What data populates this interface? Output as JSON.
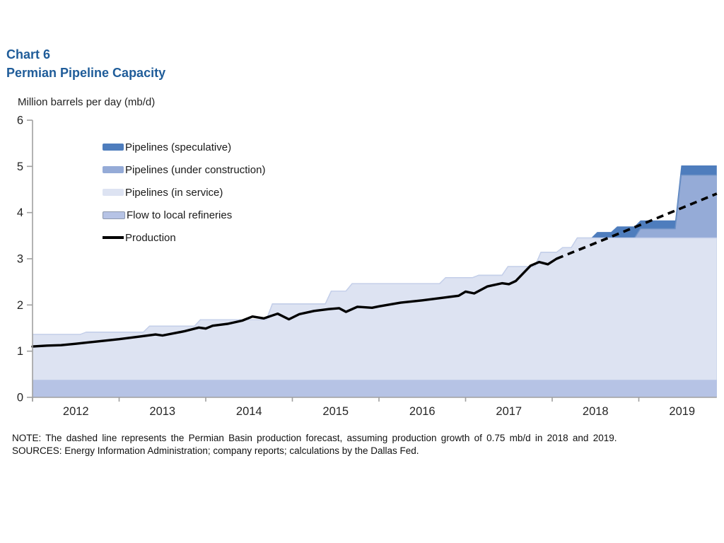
{
  "header": {
    "chart_number": "Chart 6",
    "title": "Permian Pipeline Capacity",
    "title_color": "#1f5c99"
  },
  "legend": [
    {
      "label": "Pipelines (speculative)",
      "color": "#4e7dbd",
      "type": "area"
    },
    {
      "label": "Pipelines (under construction)",
      "color": "#95abd7",
      "type": "area"
    },
    {
      "label": "Pipelines (in service)",
      "color": "#dde3f2",
      "type": "area"
    },
    {
      "label": "Flow to local refineries",
      "color": "#b6c3e5",
      "type": "area-bordered"
    },
    {
      "label": "Production",
      "color": "#000000",
      "type": "line"
    }
  ],
  "notes": {
    "note": "NOTE: The dashed line represents the Permian Basin production forecast, assuming production growth of 0.75 mb/d in 2018 and 2019.",
    "sources": "SOURCES: Energy Information  Administration; company reports; calculations by the Dallas Fed."
  },
  "chart_data": {
    "type": "area",
    "stacked": true,
    "title": "Permian Pipeline Capacity",
    "ylabel": "Million barrels per day (mb/d)",
    "xlabel": "",
    "ylim": [
      0,
      6
    ],
    "y_ticks": [
      0,
      1,
      2,
      3,
      4,
      5,
      6
    ],
    "x_tick_years": [
      2012,
      2013,
      2014,
      2015,
      2016,
      2017,
      2018,
      2019
    ],
    "x_range": [
      2012.0,
      2019.9
    ],
    "grid": false,
    "legend_position": "upper-left",
    "axis_color": "#a0a0a0",
    "tick_label_color": "#262626",
    "bands_note": "values are cumulative stack tops in mb/d; step breakpoints [year, value]",
    "bands": [
      {
        "name": "Pipelines (speculative)",
        "color": "#4e7dbd",
        "cumulative_top": [
          [
            2012.0,
            1.36
          ],
          [
            2012.55,
            1.41
          ],
          [
            2013.28,
            1.54
          ],
          [
            2013.87,
            1.68
          ],
          [
            2014.7,
            2.02
          ],
          [
            2015.38,
            2.3
          ],
          [
            2015.62,
            2.46
          ],
          [
            2016.7,
            2.59
          ],
          [
            2017.08,
            2.64
          ],
          [
            2017.42,
            2.83
          ],
          [
            2017.8,
            3.14
          ],
          [
            2018.05,
            3.24
          ],
          [
            2018.22,
            3.45
          ],
          [
            2018.45,
            3.58
          ],
          [
            2018.68,
            3.7
          ],
          [
            2018.95,
            3.83
          ],
          [
            2019.42,
            5.02
          ]
        ]
      },
      {
        "name": "Pipelines (under construction)",
        "color": "#95abd7",
        "edge_color": "#6f92c6",
        "cumulative_top": [
          [
            2012.0,
            1.36
          ],
          [
            2012.55,
            1.41
          ],
          [
            2013.28,
            1.54
          ],
          [
            2013.87,
            1.68
          ],
          [
            2014.7,
            2.02
          ],
          [
            2015.38,
            2.3
          ],
          [
            2015.62,
            2.46
          ],
          [
            2016.7,
            2.59
          ],
          [
            2017.08,
            2.64
          ],
          [
            2017.42,
            2.83
          ],
          [
            2017.8,
            3.14
          ],
          [
            2018.05,
            3.24
          ],
          [
            2018.22,
            3.45
          ],
          [
            2018.95,
            3.65
          ],
          [
            2019.42,
            4.81
          ]
        ]
      },
      {
        "name": "Pipelines (in service)",
        "color": "#dde3f2",
        "edge_color": "#c6d0ea",
        "cumulative_top": [
          [
            2012.0,
            1.36
          ],
          [
            2012.55,
            1.41
          ],
          [
            2013.28,
            1.54
          ],
          [
            2013.87,
            1.68
          ],
          [
            2014.7,
            2.02
          ],
          [
            2015.38,
            2.3
          ],
          [
            2015.62,
            2.46
          ],
          [
            2016.7,
            2.59
          ],
          [
            2017.08,
            2.64
          ],
          [
            2017.42,
            2.83
          ],
          [
            2017.8,
            3.14
          ],
          [
            2018.05,
            3.24
          ],
          [
            2018.22,
            3.45
          ]
        ]
      },
      {
        "name": "Flow to local refineries",
        "color": "#b6c3e5",
        "cumulative_top": [
          [
            2012.0,
            0.38
          ]
        ]
      }
    ],
    "production": {
      "name": "Production",
      "color": "#000000",
      "solid": [
        [
          2012.0,
          1.1
        ],
        [
          2012.17,
          1.12
        ],
        [
          2012.33,
          1.13
        ],
        [
          2012.5,
          1.16
        ],
        [
          2012.75,
          1.21
        ],
        [
          2013.0,
          1.26
        ],
        [
          2013.25,
          1.32
        ],
        [
          2013.42,
          1.36
        ],
        [
          2013.5,
          1.34
        ],
        [
          2013.75,
          1.43
        ],
        [
          2013.92,
          1.51
        ],
        [
          2014.0,
          1.49
        ],
        [
          2014.08,
          1.55
        ],
        [
          2014.25,
          1.59
        ],
        [
          2014.42,
          1.66
        ],
        [
          2014.54,
          1.75
        ],
        [
          2014.67,
          1.71
        ],
        [
          2014.83,
          1.81
        ],
        [
          2014.96,
          1.69
        ],
        [
          2015.08,
          1.8
        ],
        [
          2015.25,
          1.87
        ],
        [
          2015.42,
          1.91
        ],
        [
          2015.54,
          1.93
        ],
        [
          2015.62,
          1.85
        ],
        [
          2015.75,
          1.96
        ],
        [
          2015.92,
          1.94
        ],
        [
          2016.0,
          1.97
        ],
        [
          2016.25,
          2.05
        ],
        [
          2016.5,
          2.1
        ],
        [
          2016.75,
          2.16
        ],
        [
          2016.92,
          2.2
        ],
        [
          2017.0,
          2.29
        ],
        [
          2017.1,
          2.25
        ],
        [
          2017.25,
          2.4
        ],
        [
          2017.42,
          2.47
        ],
        [
          2017.5,
          2.45
        ],
        [
          2017.58,
          2.52
        ],
        [
          2017.75,
          2.85
        ],
        [
          2017.85,
          2.93
        ],
        [
          2017.95,
          2.88
        ],
        [
          2018.05,
          3.0
        ]
      ],
      "dashed": [
        [
          2018.05,
          3.0
        ],
        [
          2019.0,
          3.72
        ],
        [
          2019.9,
          4.41
        ]
      ],
      "forecast_note": "dashed = forecast, +0.75 mb/d per year in 2018 and 2019"
    }
  }
}
